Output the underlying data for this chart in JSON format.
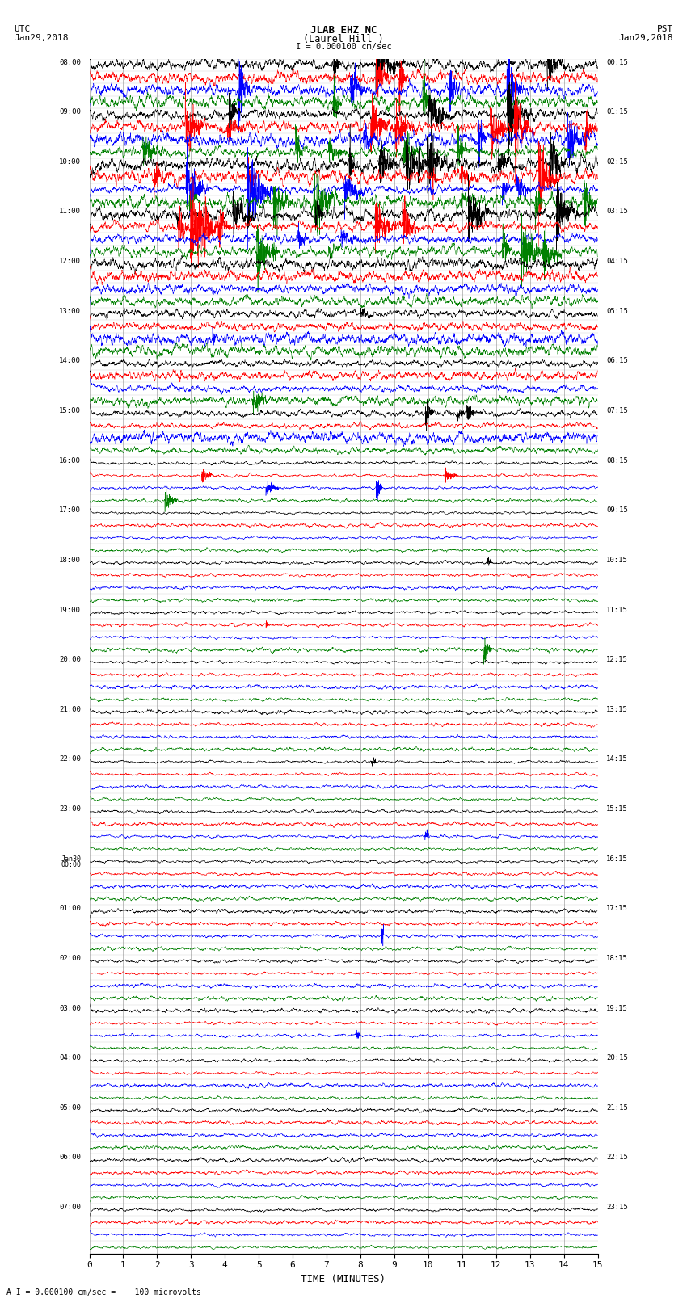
{
  "title_line1": "JLAB EHZ NC",
  "title_line2": "(Laurel Hill )",
  "scale_text": "I = 0.000100 cm/sec",
  "left_header": "UTC",
  "left_date": "Jan29,2018",
  "right_header": "PST",
  "right_date": "Jan29,2018",
  "bottom_label": "TIME (MINUTES)",
  "bottom_note": "A I = 0.000100 cm/sec =    100 microvolts",
  "x_min": 0,
  "x_max": 15,
  "x_ticks": [
    0,
    1,
    2,
    3,
    4,
    5,
    6,
    7,
    8,
    9,
    10,
    11,
    12,
    13,
    14,
    15
  ],
  "colors": [
    "black",
    "red",
    "blue",
    "green"
  ],
  "n_rows": 96,
  "bg_color": "white",
  "seed": 42,
  "left_labels": [
    "08:00",
    "",
    "",
    "",
    "09:00",
    "",
    "",
    "",
    "10:00",
    "",
    "",
    "",
    "11:00",
    "",
    "",
    "",
    "12:00",
    "",
    "",
    "",
    "13:00",
    "",
    "",
    "",
    "14:00",
    "",
    "",
    "",
    "15:00",
    "",
    "",
    "",
    "16:00",
    "",
    "",
    "",
    "17:00",
    "",
    "",
    "",
    "18:00",
    "",
    "",
    "",
    "19:00",
    "",
    "",
    "",
    "20:00",
    "",
    "",
    "",
    "21:00",
    "",
    "",
    "",
    "22:00",
    "",
    "",
    "",
    "23:00",
    "",
    "",
    "",
    "Jan30\n00:00",
    "",
    "",
    "",
    "01:00",
    "",
    "",
    "",
    "02:00",
    "",
    "",
    "",
    "03:00",
    "",
    "",
    "",
    "04:00",
    "",
    "",
    "",
    "05:00",
    "",
    "",
    "",
    "06:00",
    "",
    "",
    "",
    "07:00",
    "",
    "",
    ""
  ],
  "right_labels": [
    "00:15",
    "",
    "",
    "",
    "01:15",
    "",
    "",
    "",
    "02:15",
    "",
    "",
    "",
    "03:15",
    "",
    "",
    "",
    "04:15",
    "",
    "",
    "",
    "05:15",
    "",
    "",
    "",
    "06:15",
    "",
    "",
    "",
    "07:15",
    "",
    "",
    "",
    "08:15",
    "",
    "",
    "",
    "09:15",
    "",
    "",
    "",
    "10:15",
    "",
    "",
    "",
    "11:15",
    "",
    "",
    "",
    "12:15",
    "",
    "",
    "",
    "13:15",
    "",
    "",
    "",
    "14:15",
    "",
    "",
    "",
    "15:15",
    "",
    "",
    "",
    "16:15",
    "",
    "",
    "",
    "17:15",
    "",
    "",
    "",
    "18:15",
    "",
    "",
    "",
    "19:15",
    "",
    "",
    "",
    "20:15",
    "",
    "",
    "",
    "21:15",
    "",
    "",
    "",
    "22:15",
    "",
    "",
    "",
    "23:15",
    "",
    "",
    ""
  ],
  "n_pts": 4000,
  "base_noise": 0.06,
  "active_noise": 0.18,
  "spike_prob_early": 0.7,
  "spike_prob_late": 0.25,
  "lp_alpha": 0.92
}
